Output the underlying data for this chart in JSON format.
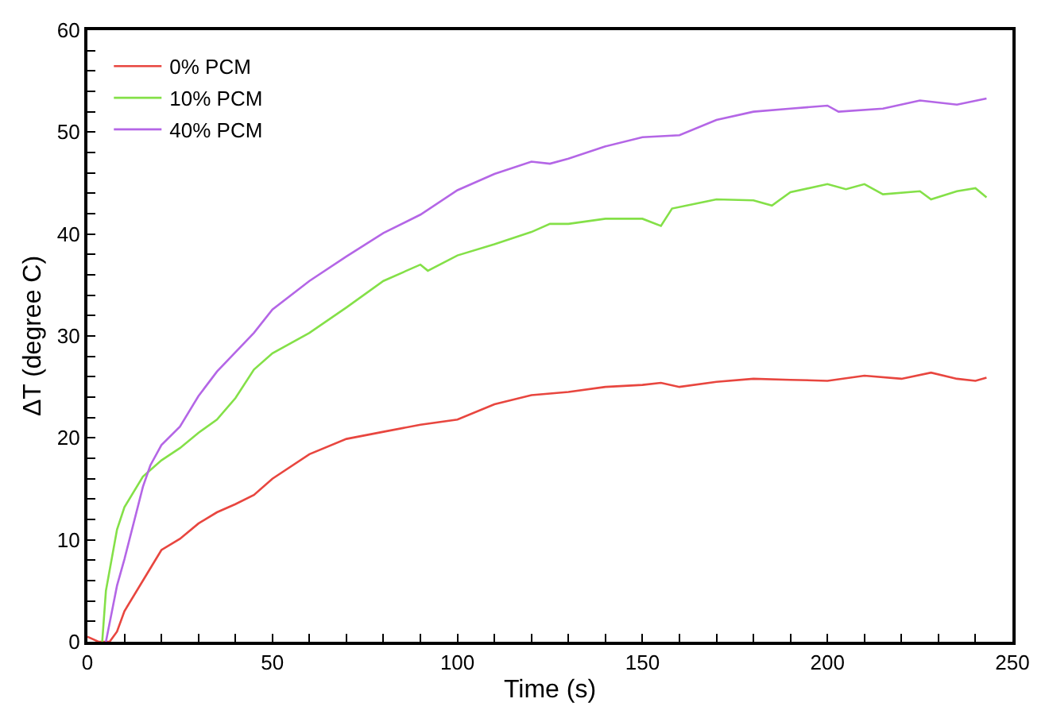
{
  "chart_data": {
    "type": "line",
    "xlabel": "Time (s)",
    "ylabel": "ΔT (degree C)",
    "xlim": [
      0,
      250
    ],
    "ylim": [
      0,
      60
    ],
    "xticks": [
      0,
      {
        "value": 10,
        "label": null
      },
      {
        "value": 20,
        "label": null
      },
      {
        "value": 30,
        "label": null
      },
      {
        "value": 40,
        "label": null
      },
      50,
      {
        "value": 60,
        "label": null
      },
      {
        "value": 70,
        "label": null
      },
      {
        "value": 80,
        "label": null
      },
      {
        "value": 90,
        "label": null
      },
      100,
      {
        "value": 110,
        "label": null
      },
      {
        "value": 120,
        "label": null
      },
      {
        "value": 130,
        "label": null
      },
      {
        "value": 140,
        "label": null
      },
      150,
      {
        "value": 160,
        "label": null
      },
      {
        "value": 170,
        "label": null
      },
      {
        "value": 180,
        "label": null
      },
      {
        "value": 190,
        "label": null
      },
      200,
      {
        "value": 210,
        "label": null
      },
      {
        "value": 220,
        "label": null
      },
      {
        "value": 230,
        "label": null
      },
      {
        "value": 240,
        "label": null
      },
      250
    ],
    "yticks": [
      0,
      {
        "value": 2,
        "label": null
      },
      {
        "value": 4,
        "label": null
      },
      {
        "value": 6,
        "label": null
      },
      {
        "value": 8,
        "label": null
      },
      10,
      {
        "value": 12,
        "label": null
      },
      {
        "value": 14,
        "label": null
      },
      {
        "value": 16,
        "label": null
      },
      {
        "value": 18,
        "label": null
      },
      20,
      {
        "value": 22,
        "label": null
      },
      {
        "value": 24,
        "label": null
      },
      {
        "value": 26,
        "label": null
      },
      {
        "value": 28,
        "label": null
      },
      30,
      {
        "value": 32,
        "label": null
      },
      {
        "value": 34,
        "label": null
      },
      {
        "value": 36,
        "label": null
      },
      {
        "value": 38,
        "label": null
      },
      40,
      {
        "value": 42,
        "label": null
      },
      {
        "value": 44,
        "label": null
      },
      {
        "value": 46,
        "label": null
      },
      {
        "value": 48,
        "label": null
      },
      50,
      {
        "value": 52,
        "label": null
      },
      {
        "value": 54,
        "label": null
      },
      {
        "value": 56,
        "label": null
      },
      {
        "value": 58,
        "label": null
      },
      60
    ],
    "legend": "top left",
    "marker": "none",
    "line_style": "solid",
    "series": [
      {
        "name": "0% PCM",
        "color": "#e8463f",
        "x": [
          0,
          3,
          6,
          8,
          10,
          15,
          20,
          25,
          30,
          35,
          40,
          45,
          50,
          60,
          70,
          80,
          90,
          100,
          110,
          120,
          130,
          140,
          150,
          155,
          160,
          170,
          180,
          190,
          200,
          210,
          220,
          228,
          235,
          240,
          243
        ],
        "values": [
          0.5,
          0,
          0,
          1,
          3,
          6,
          9,
          10.1,
          11.6,
          12.7,
          13.5,
          14.4,
          16,
          18.4,
          19.9,
          20.6,
          21.3,
          21.8,
          23.3,
          24.2,
          24.5,
          25,
          25.2,
          25.4,
          25,
          25.5,
          25.8,
          25.7,
          25.6,
          26.1,
          25.8,
          26.4,
          25.8,
          25.6,
          25.9
        ]
      },
      {
        "name": "10% PCM",
        "color": "#84e048",
        "x": [
          4,
          5,
          8,
          10,
          15,
          20,
          25,
          30,
          35,
          40,
          45,
          50,
          60,
          70,
          80,
          90,
          92,
          100,
          110,
          120,
          125,
          130,
          140,
          150,
          155,
          158,
          170,
          180,
          185,
          190,
          200,
          205,
          210,
          215,
          225,
          228,
          235,
          240,
          243
        ],
        "values": [
          0,
          5,
          11,
          13.2,
          16.2,
          17.8,
          19,
          20.5,
          21.8,
          23.9,
          26.7,
          28.3,
          30.3,
          32.8,
          35.4,
          37,
          36.4,
          37.9,
          39,
          40.2,
          41,
          41,
          41.5,
          41.5,
          40.8,
          42.5,
          43.4,
          43.3,
          42.8,
          44.1,
          44.9,
          44.4,
          44.9,
          43.9,
          44.2,
          43.4,
          44.2,
          44.5,
          43.6
        ]
      },
      {
        "name": "40% PCM",
        "color": "#b466e6",
        "x": [
          5,
          8,
          10,
          15,
          17,
          20,
          25,
          30,
          35,
          45,
          50,
          60,
          70,
          80,
          90,
          100,
          110,
          120,
          125,
          130,
          140,
          150,
          160,
          170,
          180,
          190,
          200,
          203,
          215,
          225,
          235,
          243
        ],
        "values": [
          0,
          5.5,
          8.1,
          15.2,
          17.3,
          19.3,
          21.1,
          24.1,
          26.5,
          30.3,
          32.6,
          35.4,
          37.8,
          40.1,
          41.9,
          44.3,
          45.9,
          47.1,
          46.9,
          47.4,
          48.6,
          49.5,
          49.7,
          51.2,
          52,
          52.3,
          52.6,
          52,
          52.3,
          53.1,
          52.7,
          53.3
        ]
      }
    ]
  }
}
